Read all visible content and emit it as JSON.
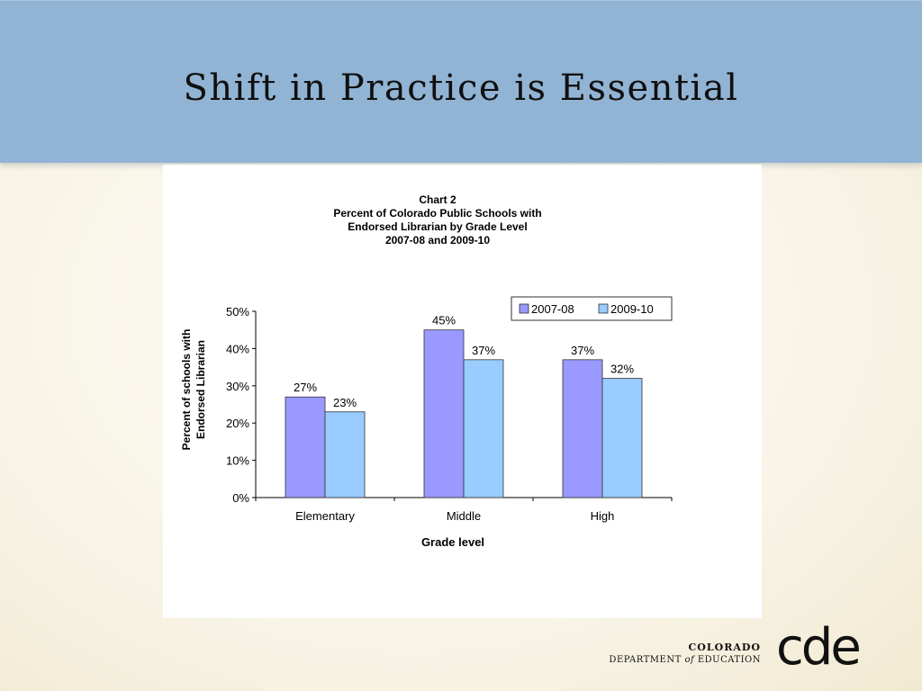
{
  "slide": {
    "title": "Shift in Practice is Essential"
  },
  "chart_data": {
    "type": "bar",
    "title_lines": [
      "Chart 2",
      "Percent of Colorado Public Schools with",
      "Endorsed Librarian by Grade Level",
      "2007-08 and 2009-10"
    ],
    "categories": [
      "Elementary",
      "Middle",
      "High"
    ],
    "series": [
      {
        "name": "2007-08",
        "values": [
          27,
          45,
          37
        ],
        "labels": [
          "27%",
          "45%",
          "37%"
        ]
      },
      {
        "name": "2009-10",
        "values": [
          23,
          37,
          32
        ],
        "labels": [
          "23%",
          "37%",
          "32%"
        ]
      }
    ],
    "xlabel": "Grade level",
    "ylabel_lines": [
      "Percent of schools with",
      "Endorsed Librarian"
    ],
    "ylim": [
      0,
      50
    ],
    "yticks": [
      0,
      10,
      20,
      30,
      40,
      50
    ],
    "ytick_labels": [
      "0%",
      "10%",
      "20%",
      "30%",
      "40%",
      "50%"
    ],
    "grid": false,
    "legend_position": "top-right",
    "colors": [
      "#9999ff",
      "#99ccff"
    ]
  },
  "logo": {
    "line1": "COLORADO",
    "line2_pre": "DEPARTMENT ",
    "line2_of": "of",
    "line2_post": " EDUCATION",
    "mark": "cde"
  }
}
